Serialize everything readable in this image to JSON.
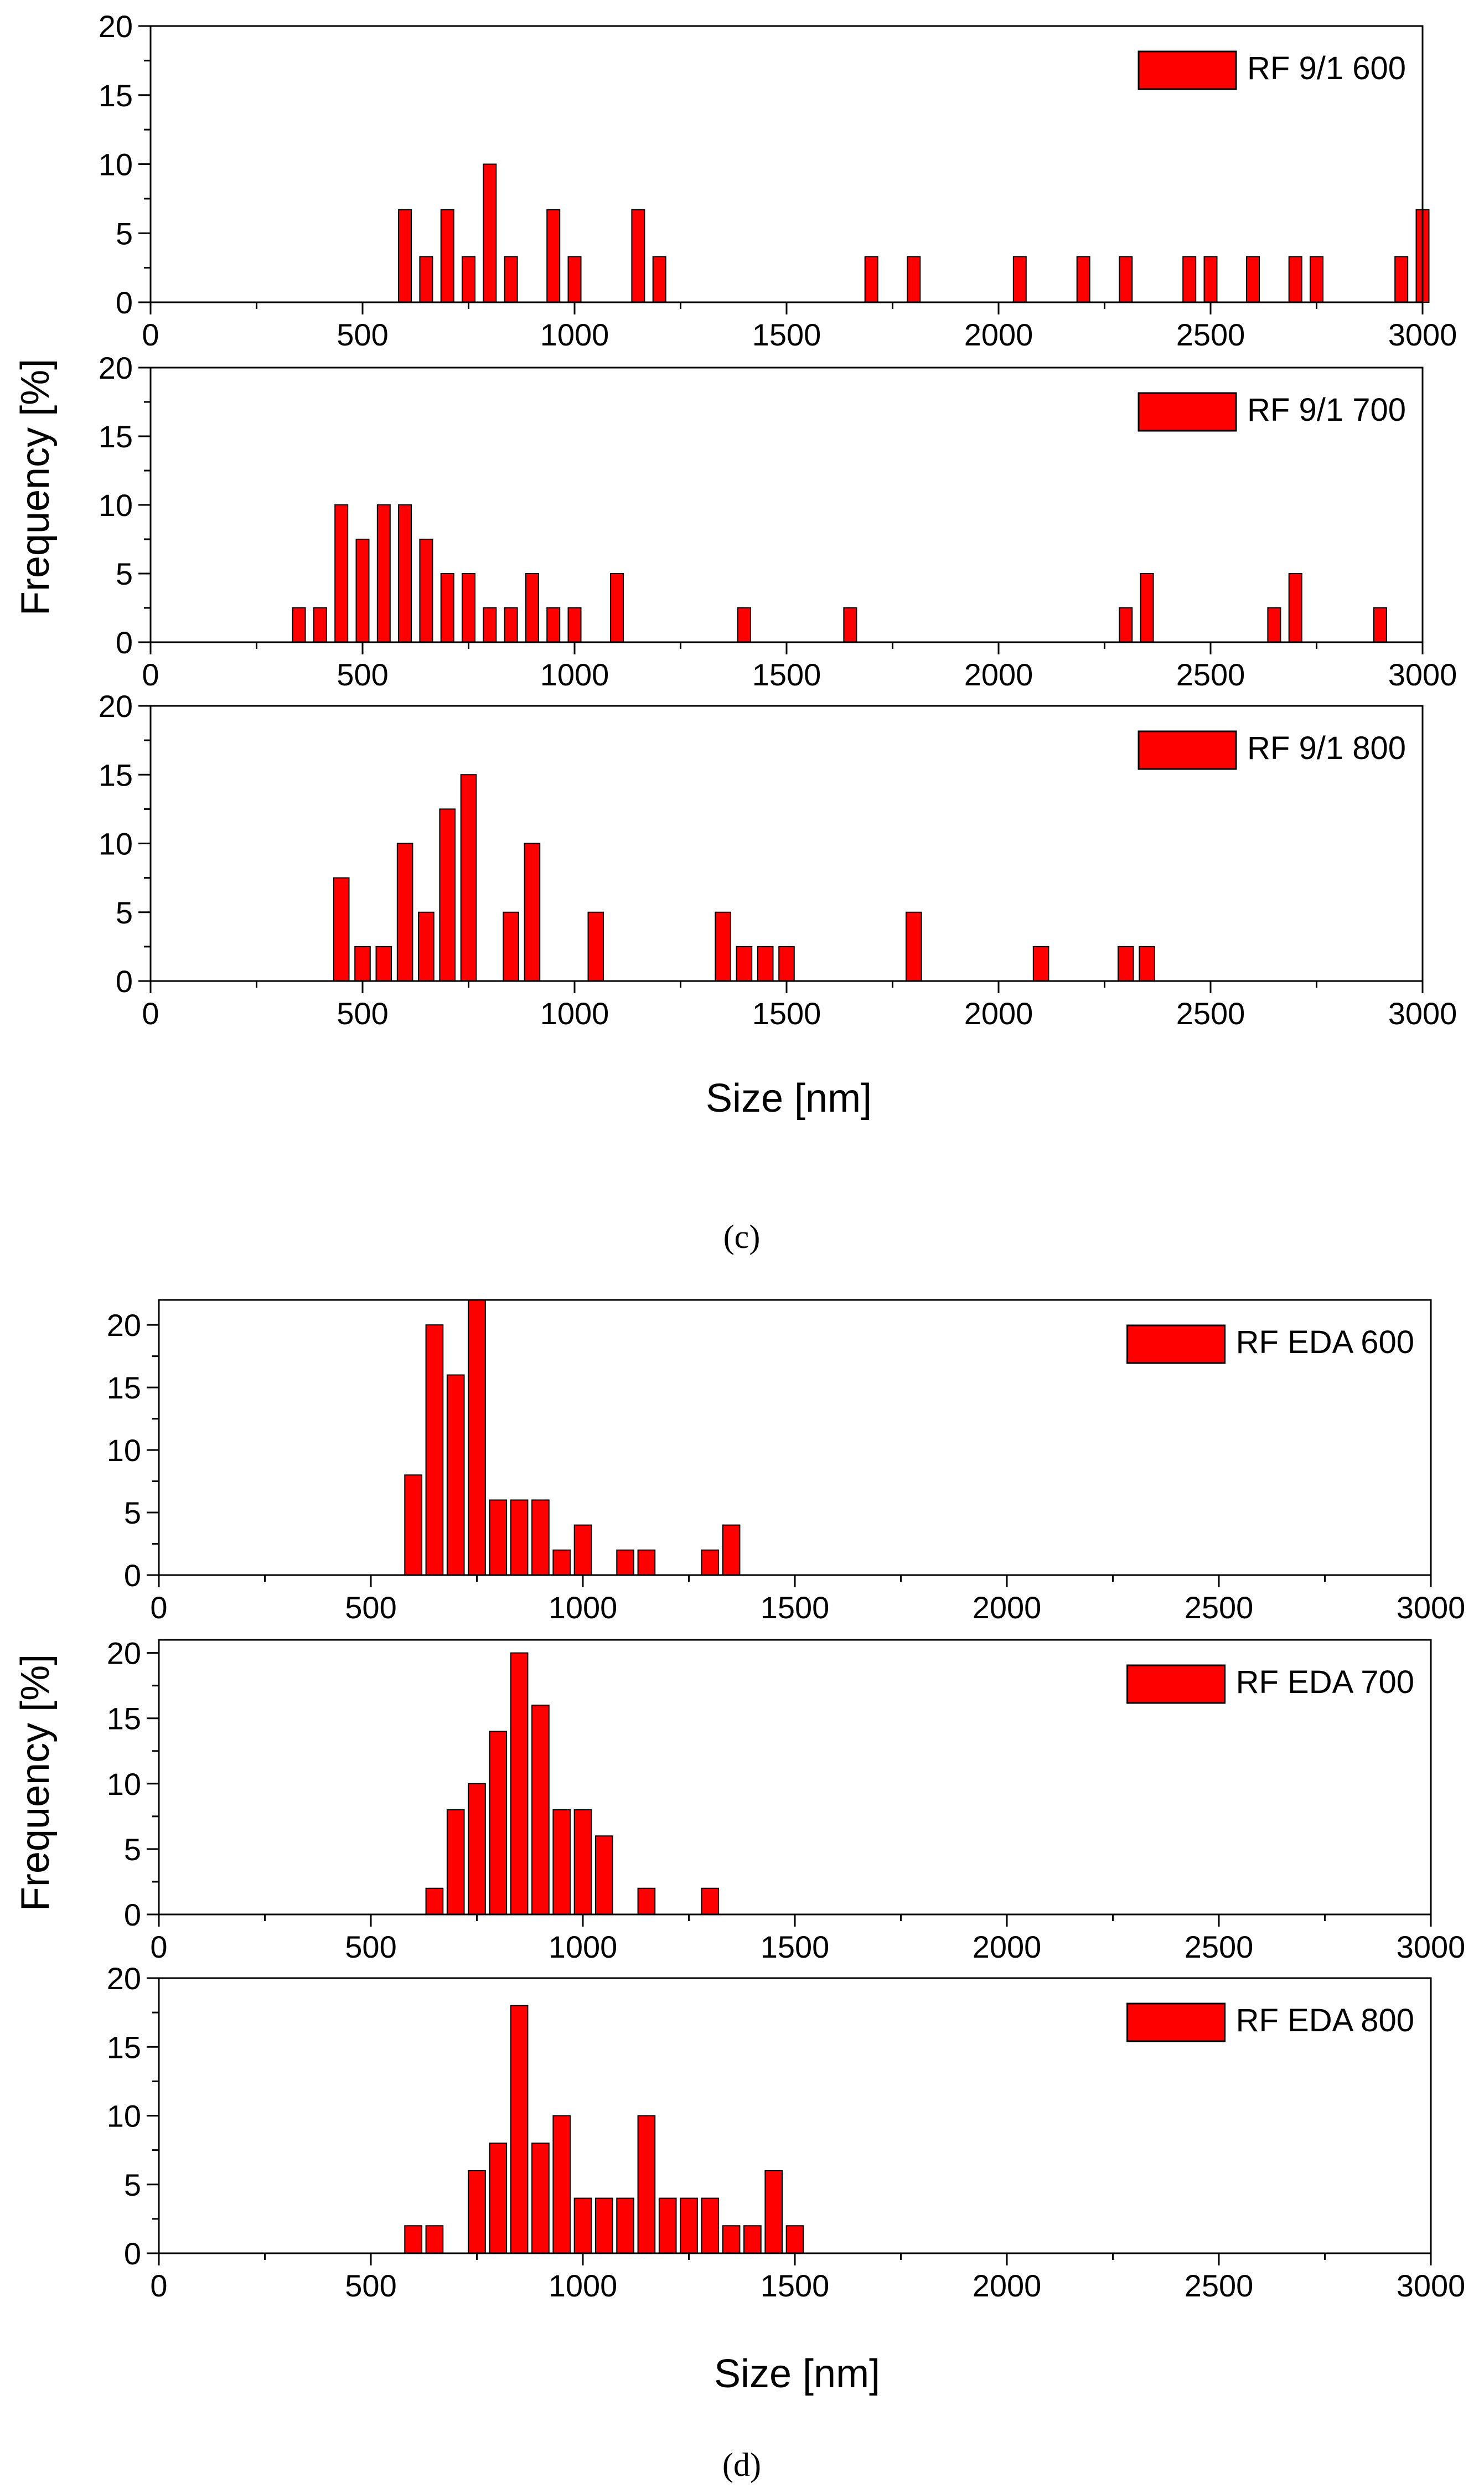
{
  "figure": {
    "ylabel": "Frequency [%]",
    "xlabel": "Size [nm]",
    "captions": [
      "(c)",
      "(d)"
    ]
  },
  "colors": {
    "bar_fill": "#ff0000",
    "bar_stroke": "#000000",
    "axis": "#000000"
  },
  "chart_data": [
    {
      "type": "bar",
      "legend": "RF 9/1 600",
      "xlim": [
        0,
        3000
      ],
      "ylim": [
        0,
        20
      ],
      "xticks": [
        0,
        500,
        1000,
        1500,
        2000,
        2500,
        3000
      ],
      "yticks": [
        0,
        5,
        10,
        15,
        20
      ],
      "bin_width": 30,
      "x": [
        600,
        650,
        700,
        750,
        800,
        850,
        950,
        1000,
        1150,
        1200,
        1700,
        1800,
        2050,
        2200,
        2300,
        2450,
        2500,
        2600,
        2700,
        2750,
        2950,
        3000
      ],
      "values": [
        6.7,
        3.3,
        6.7,
        3.3,
        10,
        3.3,
        6.7,
        3.3,
        6.7,
        3.3,
        3.3,
        3.3,
        3.3,
        3.3,
        3.3,
        3.3,
        3.3,
        3.3,
        3.3,
        3.3,
        3.3,
        6.7
      ]
    },
    {
      "type": "bar",
      "legend": "RF 9/1 700",
      "xlim": [
        0,
        3000
      ],
      "ylim": [
        0,
        20
      ],
      "xticks": [
        0,
        500,
        1000,
        1500,
        2000,
        2500,
        3000
      ],
      "yticks": [
        0,
        5,
        10,
        15,
        20
      ],
      "bin_width": 30,
      "x": [
        350,
        400,
        450,
        500,
        550,
        600,
        650,
        700,
        750,
        800,
        850,
        900,
        950,
        1000,
        1100,
        1400,
        1650,
        2300,
        2350,
        2650,
        2700,
        2900
      ],
      "values": [
        2.5,
        2.5,
        10,
        7.5,
        10,
        10,
        7.5,
        5,
        5,
        2.5,
        2.5,
        5,
        2.5,
        2.5,
        5,
        2.5,
        2.5,
        2.5,
        5,
        2.5,
        5,
        2.5
      ]
    },
    {
      "type": "bar",
      "legend": "RF 9/1 800",
      "xlim": [
        0,
        3000
      ],
      "ylim": [
        0,
        20
      ],
      "xticks": [
        0,
        500,
        1000,
        1500,
        2000,
        2500,
        3000
      ],
      "yticks": [
        0,
        5,
        10,
        15,
        20
      ],
      "bin_width": 36,
      "x": [
        450,
        500,
        550,
        600,
        650,
        700,
        750,
        850,
        900,
        1050,
        1350,
        1400,
        1450,
        1500,
        1800,
        2100,
        2300,
        2350
      ],
      "values": [
        7.5,
        2.5,
        2.5,
        10,
        5,
        12.5,
        15,
        5,
        10,
        5,
        5,
        2.5,
        2.5,
        2.5,
        5,
        2.5,
        2.5,
        2.5
      ]
    },
    {
      "type": "bar",
      "legend": "RF EDA 600",
      "xlim": [
        0,
        3000
      ],
      "ylim": [
        0,
        22
      ],
      "xticks": [
        0,
        500,
        1000,
        1500,
        2000,
        2500,
        3000
      ],
      "yticks": [
        0,
        5,
        10,
        15,
        20
      ],
      "bin_width": 40,
      "x": [
        600,
        650,
        700,
        750,
        800,
        850,
        900,
        950,
        1000,
        1100,
        1150,
        1300,
        1350
      ],
      "values": [
        8,
        20,
        16,
        22,
        6,
        6,
        6,
        2,
        4,
        2,
        2,
        2,
        4
      ]
    },
    {
      "type": "bar",
      "legend": "RF EDA 700",
      "xlim": [
        0,
        3000
      ],
      "ylim": [
        0,
        21
      ],
      "xticks": [
        0,
        500,
        1000,
        1500,
        2000,
        2500,
        3000
      ],
      "yticks": [
        0,
        5,
        10,
        15,
        20
      ],
      "bin_width": 40,
      "x": [
        650,
        700,
        750,
        800,
        850,
        900,
        950,
        1000,
        1050,
        1150,
        1300
      ],
      "values": [
        2,
        8,
        10,
        14,
        20,
        16,
        8,
        8,
        6,
        2,
        2
      ]
    },
    {
      "type": "bar",
      "legend": "RF EDA 800",
      "xlim": [
        0,
        3000
      ],
      "ylim": [
        0,
        20
      ],
      "xticks": [
        0,
        500,
        1000,
        1500,
        2000,
        2500,
        3000
      ],
      "yticks": [
        0,
        5,
        10,
        15,
        20
      ],
      "bin_width": 40,
      "x": [
        600,
        650,
        750,
        800,
        850,
        900,
        950,
        1000,
        1050,
        1100,
        1150,
        1200,
        1250,
        1300,
        1350,
        1400,
        1450,
        1500
      ],
      "values": [
        2,
        2,
        6,
        8,
        18,
        8,
        10,
        4,
        4,
        4,
        10,
        4,
        4,
        4,
        2,
        2,
        6,
        2
      ]
    }
  ]
}
